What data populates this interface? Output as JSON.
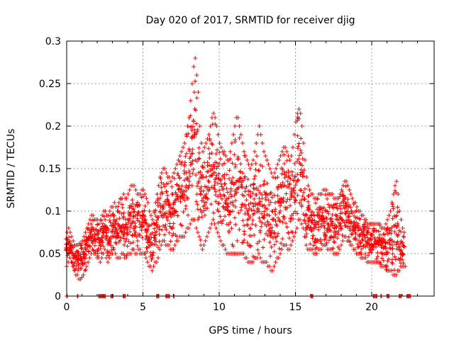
{
  "chart_data": {
    "type": "scatter",
    "title": "Day 020 of 2017, SRMTID for receiver djig",
    "xlabel": "GPS time / hours",
    "ylabel": "SRMTID / TECUs",
    "xlim": [
      0,
      24
    ],
    "ylim": [
      0,
      0.3
    ],
    "grid": true,
    "marker": "+",
    "color": "#ff0000",
    "x_ticks": [
      0,
      5,
      10,
      15,
      20
    ],
    "x_tick_labels": [
      "0",
      "5",
      "10",
      "15",
      "20"
    ],
    "y_ticks": [
      0,
      0.05,
      0.1,
      0.15,
      0.2,
      0.25,
      0.3
    ],
    "y_tick_labels": [
      "0",
      "0.05",
      "0.1",
      "0.15",
      "0.2",
      "0.25",
      "0.3"
    ],
    "x": [
      0.0,
      0.1,
      0.2,
      0.3,
      0.4,
      0.5,
      0.6,
      0.7,
      0.8,
      0.9,
      1.0,
      1.1,
      1.2,
      1.3,
      1.4,
      1.5,
      1.6,
      1.7,
      1.8,
      1.9,
      2.0,
      2.1,
      2.2,
      2.3,
      2.4,
      2.5,
      2.6,
      2.7,
      2.8,
      2.9,
      3.0,
      3.1,
      3.2,
      3.3,
      3.4,
      3.5,
      3.6,
      3.7,
      3.8,
      3.9,
      4.0,
      4.1,
      4.2,
      4.3,
      4.4,
      4.5,
      4.6,
      4.7,
      4.8,
      4.9,
      5.0,
      5.1,
      5.2,
      5.3,
      5.4,
      5.5,
      5.6,
      5.7,
      5.8,
      5.9,
      6.0,
      6.1,
      6.2,
      6.3,
      6.4,
      6.5,
      6.6,
      6.7,
      6.8,
      6.9,
      7.0,
      7.1,
      7.2,
      7.3,
      7.4,
      7.5,
      7.6,
      7.7,
      7.8,
      7.9,
      8.0,
      8.1,
      8.2,
      8.3,
      8.4,
      8.5,
      8.6,
      8.7,
      8.8,
      8.9,
      9.0,
      9.1,
      9.2,
      9.3,
      9.4,
      9.5,
      9.6,
      9.7,
      9.8,
      9.9,
      10.0,
      10.1,
      10.2,
      10.3,
      10.4,
      10.5,
      10.6,
      10.7,
      10.8,
      10.9,
      11.0,
      11.1,
      11.2,
      11.3,
      11.4,
      11.5,
      11.6,
      11.7,
      11.8,
      11.9,
      12.0,
      12.1,
      12.2,
      12.3,
      12.4,
      12.5,
      12.6,
      12.7,
      12.8,
      12.9,
      13.0,
      13.1,
      13.2,
      13.3,
      13.4,
      13.5,
      13.6,
      13.7,
      13.8,
      13.9,
      14.0,
      14.1,
      14.2,
      14.3,
      14.4,
      14.5,
      14.6,
      14.7,
      14.8,
      14.9,
      15.0,
      15.1,
      15.2,
      15.3,
      15.4,
      15.5,
      15.6,
      15.7,
      15.8,
      15.9,
      16.0,
      16.1,
      16.2,
      16.3,
      16.4,
      16.5,
      16.6,
      16.7,
      16.8,
      16.9,
      17.0,
      17.1,
      17.2,
      17.3,
      17.4,
      17.5,
      17.6,
      17.7,
      17.8,
      17.9,
      18.0,
      18.1,
      18.2,
      18.3,
      18.4,
      18.5,
      18.6,
      18.7,
      18.8,
      18.9,
      19.0,
      19.1,
      19.2,
      19.3,
      19.4,
      19.5,
      19.6,
      19.7,
      19.8,
      19.9,
      20.0,
      20.1,
      20.2,
      20.3,
      20.4,
      20.5,
      20.6,
      20.7,
      20.8,
      20.9,
      21.0,
      21.1,
      21.2,
      21.3,
      21.4,
      21.5,
      21.6,
      21.7,
      21.8,
      21.9,
      22.0,
      22.1,
      22.2,
      22.3,
      22.4,
      22.5,
      22.6,
      22.7,
      22.8
    ],
    "y_min": [
      0.035,
      0.04,
      0.045,
      0.04,
      0.035,
      0.03,
      0.025,
      0.025,
      0.02,
      0.02,
      0.022,
      0.025,
      0.03,
      0.035,
      0.04,
      0.045,
      0.05,
      0.055,
      0.05,
      0.05,
      0.045,
      0.045,
      0.04,
      0.045,
      0.05,
      0.055,
      0.045,
      0.04,
      0.045,
      0.05,
      0.05,
      0.055,
      0.05,
      0.045,
      0.045,
      0.045,
      0.05,
      0.05,
      0.045,
      0.045,
      0.05,
      0.05,
      0.05,
      0.055,
      0.055,
      0.05,
      0.05,
      0.055,
      0.05,
      0.05,
      0.05,
      0.05,
      0.045,
      0.04,
      0.035,
      0.035,
      0.03,
      0.035,
      0.04,
      0.04,
      0.045,
      0.055,
      0.06,
      0.065,
      0.065,
      0.06,
      0.06,
      0.06,
      0.055,
      0.055,
      0.055,
      0.06,
      0.065,
      0.065,
      0.07,
      0.07,
      0.07,
      0.07,
      0.075,
      0.08,
      0.08,
      0.085,
      0.09,
      0.09,
      0.09,
      0.08,
      0.075,
      0.07,
      0.06,
      0.055,
      0.06,
      0.065,
      0.07,
      0.075,
      0.08,
      0.085,
      0.09,
      0.085,
      0.08,
      0.075,
      0.07,
      0.065,
      0.06,
      0.06,
      0.055,
      0.05,
      0.05,
      0.05,
      0.05,
      0.05,
      0.05,
      0.05,
      0.05,
      0.05,
      0.05,
      0.05,
      0.05,
      0.045,
      0.045,
      0.04,
      0.04,
      0.04,
      0.04,
      0.045,
      0.045,
      0.045,
      0.05,
      0.045,
      0.04,
      0.04,
      0.04,
      0.04,
      0.035,
      0.035,
      0.03,
      0.03,
      0.035,
      0.04,
      0.045,
      0.045,
      0.05,
      0.055,
      0.06,
      0.06,
      0.06,
      0.055,
      0.055,
      0.06,
      0.065,
      0.07,
      0.075,
      0.08,
      0.09,
      0.09,
      0.085,
      0.08,
      0.07,
      0.06,
      0.055,
      0.055,
      0.055,
      0.055,
      0.05,
      0.05,
      0.05,
      0.055,
      0.055,
      0.055,
      0.06,
      0.06,
      0.06,
      0.055,
      0.055,
      0.055,
      0.055,
      0.05,
      0.05,
      0.05,
      0.05,
      0.055,
      0.06,
      0.065,
      0.07,
      0.07,
      0.065,
      0.065,
      0.06,
      0.06,
      0.055,
      0.055,
      0.05,
      0.05,
      0.05,
      0.045,
      0.045,
      0.045,
      0.045,
      0.04,
      0.04,
      0.04,
      0.04,
      0.04,
      0.04,
      0.04,
      0.04,
      0.04,
      0.035,
      0.035,
      0.035,
      0.035,
      0.03,
      0.03,
      0.03,
      0.03,
      0.025,
      0.025,
      0.025,
      0.03,
      0.03,
      0.035,
      0.035,
      0.035,
      0.035
    ],
    "y_max": [
      0.075,
      0.08,
      0.075,
      0.07,
      0.065,
      0.06,
      0.06,
      0.06,
      0.062,
      0.062,
      0.065,
      0.07,
      0.075,
      0.08,
      0.085,
      0.09,
      0.095,
      0.095,
      0.09,
      0.09,
      0.09,
      0.085,
      0.09,
      0.095,
      0.1,
      0.1,
      0.095,
      0.095,
      0.1,
      0.105,
      0.105,
      0.11,
      0.105,
      0.1,
      0.11,
      0.115,
      0.115,
      0.12,
      0.115,
      0.115,
      0.12,
      0.125,
      0.13,
      0.13,
      0.13,
      0.125,
      0.12,
      0.12,
      0.12,
      0.125,
      0.125,
      0.12,
      0.115,
      0.11,
      0.1,
      0.095,
      0.09,
      0.1,
      0.11,
      0.12,
      0.13,
      0.14,
      0.145,
      0.15,
      0.15,
      0.145,
      0.14,
      0.14,
      0.135,
      0.14,
      0.145,
      0.15,
      0.155,
      0.16,
      0.165,
      0.17,
      0.175,
      0.18,
      0.19,
      0.2,
      0.21,
      0.23,
      0.25,
      0.27,
      0.28,
      0.26,
      0.24,
      0.2,
      0.18,
      0.17,
      0.175,
      0.18,
      0.185,
      0.19,
      0.2,
      0.21,
      0.215,
      0.21,
      0.2,
      0.19,
      0.18,
      0.175,
      0.17,
      0.17,
      0.165,
      0.16,
      0.16,
      0.17,
      0.18,
      0.19,
      0.2,
      0.21,
      0.21,
      0.2,
      0.19,
      0.18,
      0.17,
      0.165,
      0.16,
      0.155,
      0.15,
      0.155,
      0.16,
      0.17,
      0.18,
      0.19,
      0.2,
      0.19,
      0.18,
      0.17,
      0.165,
      0.16,
      0.155,
      0.15,
      0.145,
      0.14,
      0.145,
      0.15,
      0.155,
      0.16,
      0.165,
      0.17,
      0.175,
      0.175,
      0.17,
      0.165,
      0.16,
      0.165,
      0.175,
      0.19,
      0.205,
      0.215,
      0.22,
      0.215,
      0.2,
      0.18,
      0.16,
      0.14,
      0.13,
      0.125,
      0.12,
      0.12,
      0.115,
      0.115,
      0.115,
      0.12,
      0.12,
      0.12,
      0.125,
      0.125,
      0.125,
      0.12,
      0.12,
      0.12,
      0.12,
      0.115,
      0.115,
      0.115,
      0.115,
      0.12,
      0.125,
      0.13,
      0.135,
      0.135,
      0.13,
      0.125,
      0.12,
      0.115,
      0.11,
      0.11,
      0.105,
      0.1,
      0.1,
      0.095,
      0.095,
      0.09,
      0.09,
      0.085,
      0.085,
      0.085,
      0.085,
      0.085,
      0.085,
      0.085,
      0.085,
      0.085,
      0.08,
      0.08,
      0.08,
      0.085,
      0.09,
      0.095,
      0.1,
      0.11,
      0.12,
      0.13,
      0.135,
      0.12,
      0.1,
      0.09,
      0.08,
      0.075
    ],
    "zero_x": [
      0.0,
      0.7,
      2.1,
      2.2,
      2.3,
      2.4,
      2.5,
      2.9,
      3.0,
      3.7,
      3.8,
      5.9,
      6.0,
      6.5,
      6.6,
      6.7,
      7.0,
      16.0,
      16.1,
      20.1,
      20.2,
      20.3,
      20.6,
      21.0,
      21.1,
      21.8,
      21.9,
      22.3,
      22.4,
      22.5
    ]
  }
}
